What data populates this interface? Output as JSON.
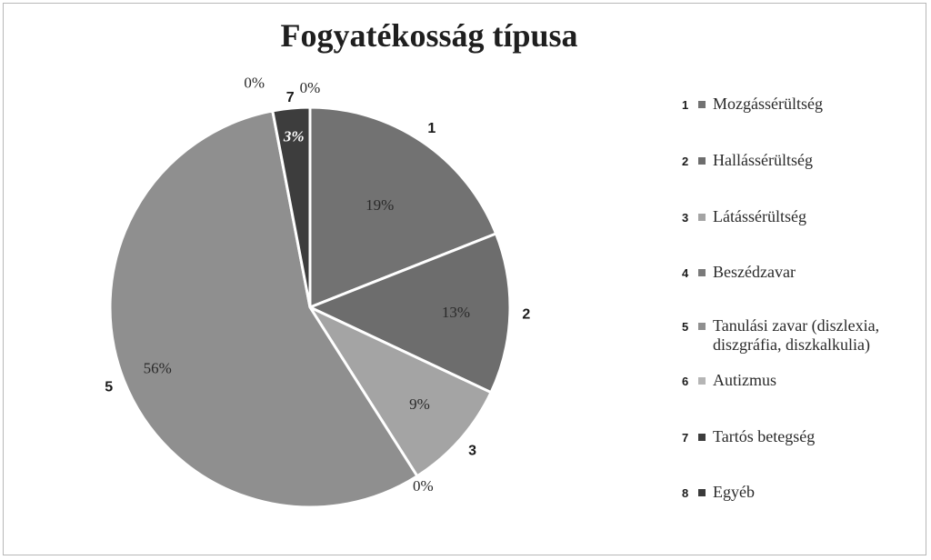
{
  "chart_data": {
    "type": "pie",
    "title": "Fogyatékosság típusa",
    "slices": [
      {
        "category": "1",
        "name": "Mozgássérültség",
        "value": 19,
        "label": "19%",
        "color": "#727272"
      },
      {
        "category": "2",
        "name": "Hallássérültség",
        "value": 13,
        "label": "13%",
        "color": "#6d6d6d"
      },
      {
        "category": "3",
        "name": "Látássérültség",
        "value": 9,
        "label": "9%",
        "color": "#a4a4a4"
      },
      {
        "category": "4",
        "name": "Beszédzavar",
        "value": 0,
        "label": "0%",
        "color": "#7a7a7a"
      },
      {
        "category": "5",
        "name": "Tanulási zavar (diszlexia,\ndiszgráfia, diszkalkulia)",
        "value": 56,
        "label": "56%",
        "color": "#8f8f8f"
      },
      {
        "category": "6",
        "name": "Autizmus",
        "value": 0,
        "label": "0%",
        "color": "#b5b5b5"
      },
      {
        "category": "7",
        "name": "Tartós betegség",
        "value": 3,
        "label": "3%",
        "color": "#3d3d3d"
      },
      {
        "category": "8",
        "name": "Egyéb",
        "value": 0,
        "label": "0%",
        "color": "#3a3a3a"
      }
    ],
    "legend_position": "right"
  }
}
